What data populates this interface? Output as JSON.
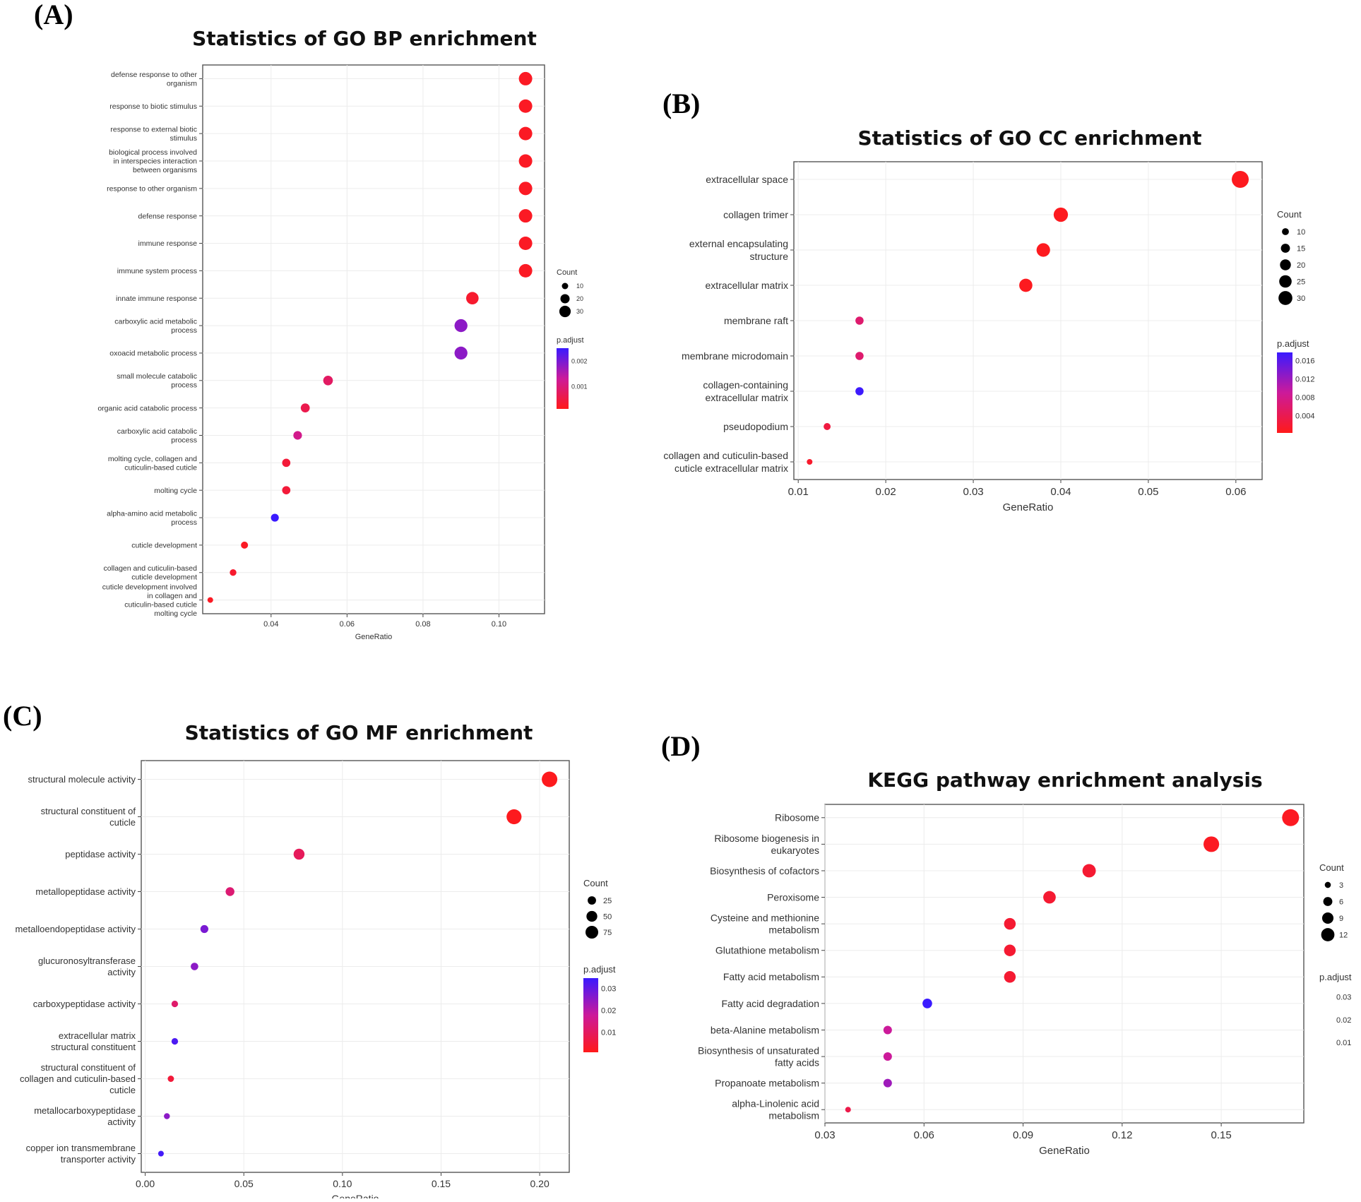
{
  "chart_data": [
    {
      "panel": "(A)",
      "type": "scatter",
      "title": "Statistics of GO BP enrichment",
      "xlabel": "GeneRatio",
      "ylabel": "",
      "xlim": [
        0.022,
        0.112
      ],
      "xticks": [
        0.04,
        0.06,
        0.08,
        0.1
      ],
      "xtick_labels": [
        "0.04",
        "0.06",
        "0.08",
        "0.10"
      ],
      "size_legend": {
        "title": "Count",
        "values": [
          10,
          20,
          30
        ],
        "labels": [
          "10",
          "20",
          "30"
        ]
      },
      "color_legend": {
        "title": "p.adjust",
        "labels": [
          "0.002",
          "0.001"
        ],
        "range": [
          0,
          0.0025
        ]
      },
      "categories": [
        [
          "defense response to other",
          "organism"
        ],
        [
          "response to biotic stimulus"
        ],
        [
          "response to external biotic",
          "stimulus"
        ],
        [
          "biological process involved",
          "in interspecies interaction",
          "between organisms"
        ],
        [
          "response to other organism"
        ],
        [
          "defense response"
        ],
        [
          "immune response"
        ],
        [
          "immune system process"
        ],
        [
          "innate immune response"
        ],
        [
          "carboxylic acid metabolic",
          "process"
        ],
        [
          "oxoacid metabolic process"
        ],
        [
          "small molecule catabolic",
          "process"
        ],
        [
          "organic acid catabolic process"
        ],
        [
          "carboxylic acid catabolic",
          "process"
        ],
        [
          "molting cycle, collagen and",
          "cuticulin-based cuticle"
        ],
        [
          "molting cycle"
        ],
        [
          "alpha-amino acid metabolic",
          "process"
        ],
        [
          "cuticle development"
        ],
        [
          "collagen and cuticulin-based",
          "cuticle development"
        ],
        [
          "cuticle development involved",
          "in collagen and",
          "cuticulin-based cuticle",
          "molting cycle"
        ]
      ],
      "x": [
        0.107,
        0.107,
        0.107,
        0.107,
        0.107,
        0.107,
        0.107,
        0.107,
        0.093,
        0.09,
        0.09,
        0.055,
        0.049,
        0.047,
        0.044,
        0.044,
        0.041,
        0.033,
        0.03,
        0.024
      ],
      "count": [
        30,
        30,
        30,
        30,
        30,
        30,
        30,
        30,
        26,
        28,
        28,
        16,
        14,
        13,
        12,
        12,
        11,
        9,
        8,
        6
      ],
      "p_adjust": [
        0.0001,
        0.0001,
        0.0001,
        0.0001,
        0.0001,
        0.0001,
        0.0001,
        0.0001,
        0.0002,
        0.0018,
        0.0018,
        0.0007,
        0.0005,
        0.0011,
        0.0003,
        0.0003,
        0.0025,
        0.0001,
        0.0002,
        0.0001
      ]
    },
    {
      "panel": "(B)",
      "type": "scatter",
      "title": "Statistics of GO CC enrichment",
      "xlabel": "GeneRatio",
      "ylabel": "",
      "xlim": [
        0.0095,
        0.063
      ],
      "xticks": [
        0.01,
        0.02,
        0.03,
        0.04,
        0.05,
        0.06
      ],
      "xtick_labels": [
        "0.01",
        "0.02",
        "0.03",
        "0.04",
        "0.05",
        "0.06"
      ],
      "size_legend": {
        "title": "Count",
        "values": [
          10,
          15,
          20,
          25,
          30
        ],
        "labels": [
          "10",
          "15",
          "20",
          "25",
          "30"
        ]
      },
      "color_legend": {
        "title": "p.adjust",
        "labels": [
          "0.016",
          "0.012",
          "0.008",
          "0.004"
        ],
        "range": [
          0,
          0.017
        ]
      },
      "categories": [
        [
          "extracellular space"
        ],
        [
          "collagen trimer"
        ],
        [
          "external encapsulating",
          "structure"
        ],
        [
          "extracellular matrix"
        ],
        [
          "membrane raft"
        ],
        [
          "membrane microdomain"
        ],
        [
          "collagen-containing",
          "extracellular matrix"
        ],
        [
          "pseudopodium"
        ],
        [
          "collagen and cuticulin-based",
          "cuticle extracellular matrix"
        ]
      ],
      "x": [
        0.0605,
        0.04,
        0.038,
        0.036,
        0.017,
        0.017,
        0.017,
        0.0133,
        0.0113
      ],
      "count": [
        32,
        24,
        22,
        21,
        10,
        10,
        10,
        8,
        6
      ],
      "p_adjust": [
        0.0003,
        0.0003,
        0.0003,
        0.0003,
        0.0055,
        0.0055,
        0.0168,
        0.0025,
        0.0012
      ]
    },
    {
      "panel": "(C)",
      "type": "scatter",
      "title": "Statistics of GO MF enrichment",
      "xlabel": "GeneRatio",
      "ylabel": "",
      "xlim": [
        -0.002,
        0.215
      ],
      "xticks": [
        0.0,
        0.05,
        0.1,
        0.15,
        0.2
      ],
      "xtick_labels": [
        "0.00",
        "0.05",
        "0.10",
        "0.15",
        "0.20"
      ],
      "size_legend": {
        "title": "Count",
        "values": [
          25,
          50,
          75
        ],
        "labels": [
          "25",
          "50",
          "75"
        ]
      },
      "color_legend": {
        "title": "p.adjust",
        "labels": [
          "0.03",
          "0.02",
          "0.01"
        ],
        "range": [
          0,
          0.032
        ]
      },
      "categories": [
        [
          "structural molecule activity"
        ],
        [
          "structural constituent of",
          "cuticle"
        ],
        [
          "peptidase activity"
        ],
        [
          "metallopeptidase activity"
        ],
        [
          "metalloendopeptidase activity"
        ],
        [
          "glucuronosyltransferase",
          "activity"
        ],
        [
          "carboxypeptidase activity"
        ],
        [
          "extracellular matrix",
          "structural constituent"
        ],
        [
          "structural constituent of",
          "collagen and cuticulin-based",
          "cuticle"
        ],
        [
          "metallocarboxypeptidase",
          "activity"
        ],
        [
          "copper ion transmembrane",
          "transporter activity"
        ]
      ],
      "x": [
        0.205,
        0.187,
        0.078,
        0.043,
        0.03,
        0.025,
        0.015,
        0.015,
        0.013,
        0.011,
        0.008
      ],
      "count": [
        82,
        75,
        33,
        18,
        13,
        11,
        7,
        7,
        6,
        5,
        4
      ],
      "p_adjust": [
        0.0005,
        0.0005,
        0.008,
        0.011,
        0.025,
        0.023,
        0.01,
        0.03,
        0.004,
        0.023,
        0.031
      ]
    },
    {
      "panel": "(D)",
      "type": "scatter",
      "title": "KEGG pathway enrichment analysis",
      "xlabel": "GeneRatio",
      "ylabel": "",
      "xlim": [
        0.03,
        0.175
      ],
      "xticks": [
        0.03,
        0.06,
        0.09,
        0.12,
        0.15
      ],
      "xtick_labels": [
        "0.03",
        "0.06",
        "0.09",
        "0.12",
        "0.15"
      ],
      "size_legend": {
        "title": "Count",
        "values": [
          3,
          6,
          9,
          12
        ],
        "labels": [
          "3",
          "6",
          "9",
          "12"
        ]
      },
      "color_legend": {
        "title": "p.adjust",
        "labels": [
          "0.03",
          "0.02",
          "0.01"
        ],
        "range": [
          0,
          0.032
        ]
      },
      "categories": [
        [
          "Ribosome"
        ],
        [
          "Ribosome biogenesis in",
          "eukaryotes"
        ],
        [
          "Biosynthesis of cofactors"
        ],
        [
          "Peroxisome"
        ],
        [
          "Cysteine and methionine",
          "metabolism"
        ],
        [
          "Glutathione metabolism"
        ],
        [
          "Fatty acid metabolism"
        ],
        [
          "Fatty acid degradation"
        ],
        [
          "beta-Alanine metabolism"
        ],
        [
          "Biosynthesis of unsaturated",
          "fatty acids"
        ],
        [
          "Propanoate metabolism"
        ],
        [
          "alpha-Linolenic acid",
          "metabolism"
        ]
      ],
      "x": [
        0.171,
        0.147,
        0.11,
        0.098,
        0.086,
        0.086,
        0.086,
        0.061,
        0.049,
        0.049,
        0.049,
        0.037
      ],
      "count": [
        14,
        12,
        9,
        8,
        7,
        7,
        7,
        5,
        4,
        4,
        4,
        2
      ],
      "p_adjust": [
        0.001,
        0.001,
        0.003,
        0.003,
        0.003,
        0.003,
        0.003,
        0.032,
        0.016,
        0.016,
        0.021,
        0.006
      ]
    }
  ]
}
